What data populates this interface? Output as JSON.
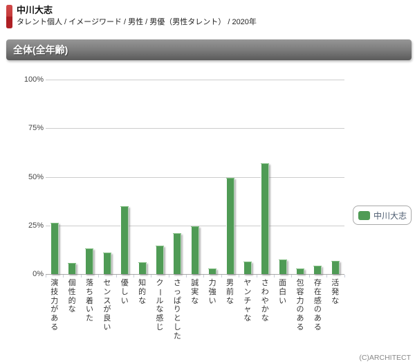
{
  "header": {
    "title": "中川大志",
    "breadcrumb": "タレント個人 / イメージワード / 男性 / 男優（男性タレント） / 2020年"
  },
  "section": {
    "title": "全体(全年齢)"
  },
  "chart_data": {
    "type": "bar",
    "ylim": [
      0,
      100
    ],
    "yticks": [
      0,
      25,
      50,
      75,
      100
    ],
    "ytick_labels": [
      "0%",
      "25%",
      "50%",
      "75%",
      "100%"
    ],
    "grid": true,
    "bar_color": "#4f9b55",
    "categories": [
      "演技力がある",
      "個性的な",
      "落ち着いた",
      "センスが良い",
      "優しい",
      "知的な",
      "クールな感じ",
      "さっぱりとした",
      "誠実な",
      "力強い",
      "男前な",
      "ヤンチャな",
      "さわやかな",
      "面白い",
      "包容力のある",
      "存在感のある",
      "活発な"
    ],
    "series": [
      {
        "name": "中川大志",
        "values": [
          26.4,
          5.8,
          13.4,
          11.2,
          34.9,
          6.1,
          14.8,
          21.0,
          24.6,
          2.9,
          49.8,
          6.5,
          57.2,
          7.7,
          3.2,
          4.6,
          7.1
        ]
      }
    ],
    "legend": {
      "position": "right",
      "entries": [
        "中川大志"
      ]
    }
  },
  "footer": {
    "copyright": "(C)ARCHITECT"
  }
}
